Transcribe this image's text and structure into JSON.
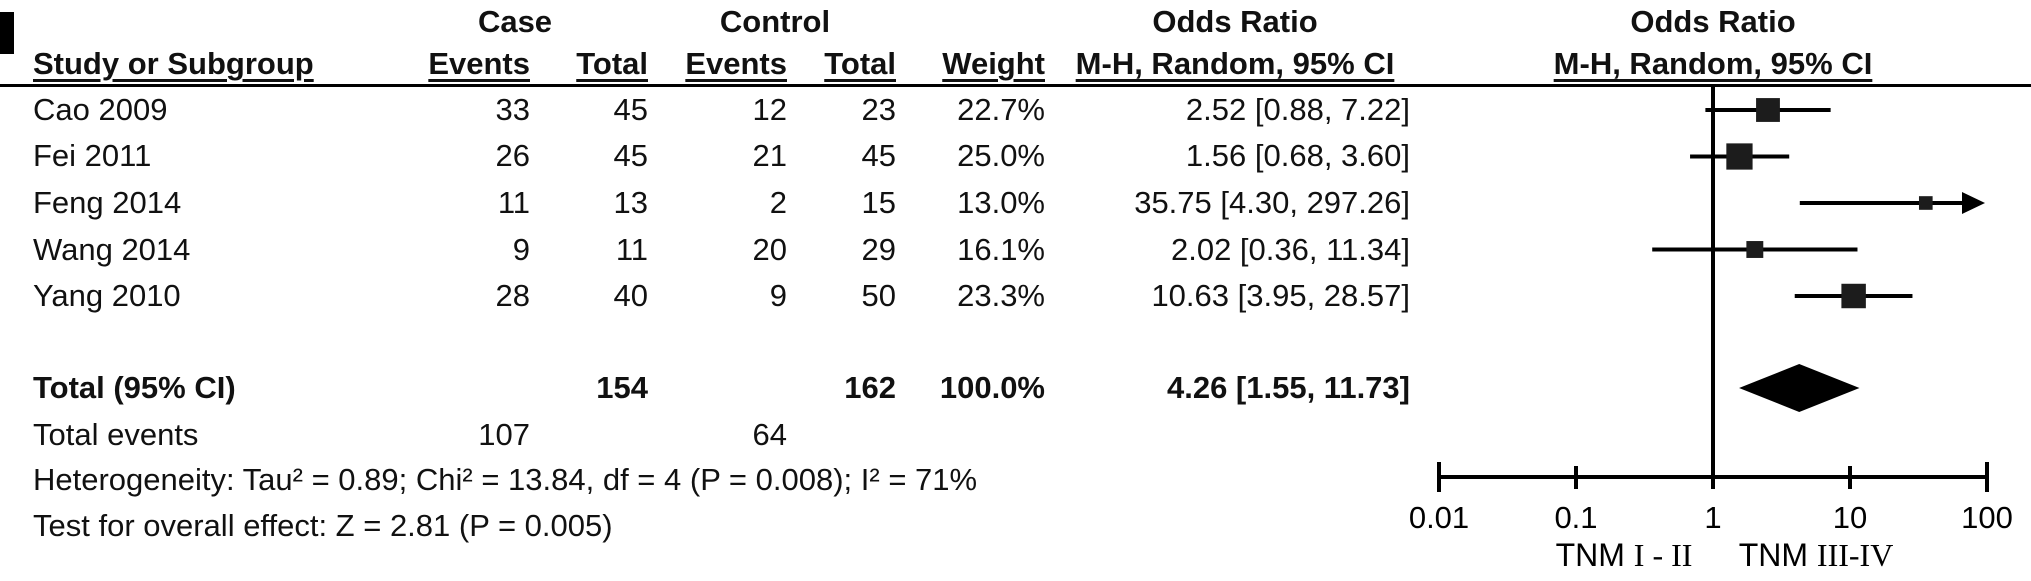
{
  "table": {
    "group_headers": {
      "case": "Case",
      "control": "Control",
      "odds_ratio_left": "Odds Ratio",
      "odds_ratio_right": "Odds Ratio"
    },
    "columns": {
      "study": "Study or Subgroup",
      "events_case": "Events",
      "total_case": "Total",
      "events_control": "Events",
      "total_control": "Total",
      "weight": "Weight",
      "mh_left": "M-H, Random, 95% CI",
      "mh_right": "M-H, Random, 95% CI"
    }
  },
  "rows": [
    {
      "name": "Cao 2009",
      "events_case": "33",
      "total_case": "45",
      "events_control": "12",
      "total_control": "23",
      "weight": "22.7%",
      "or_text": "2.52 [0.88, 7.22]"
    },
    {
      "name": "Fei 2011",
      "events_case": "26",
      "total_case": "45",
      "events_control": "21",
      "total_control": "45",
      "weight": "25.0%",
      "or_text": "1.56 [0.68, 3.60]"
    },
    {
      "name": "Feng 2014",
      "events_case": "11",
      "total_case": "13",
      "events_control": "2",
      "total_control": "15",
      "weight": "13.0%",
      "or_text": "35.75 [4.30, 297.26]"
    },
    {
      "name": "Wang 2014",
      "events_case": "9",
      "total_case": "11",
      "events_control": "20",
      "total_control": "29",
      "weight": "16.1%",
      "or_text": "2.02 [0.36, 11.34]"
    },
    {
      "name": "Yang 2010",
      "events_case": "28",
      "total_case": "40",
      "events_control": "9",
      "total_control": "50",
      "weight": "23.3%",
      "or_text": "10.63 [3.95, 28.57]"
    }
  ],
  "total_row": {
    "label": "Total (95% CI)",
    "total_case": "154",
    "total_control": "162",
    "weight": "100.0%",
    "or_text": "4.26 [1.55, 11.73]"
  },
  "total_events_row": {
    "label": "Total events",
    "events_case": "107",
    "events_control": "64"
  },
  "heterogeneity": "Heterogeneity: Tau² = 0.89; Chi² = 13.84, df = 4 (P = 0.008); I² = 71%",
  "overall_effect": "Test for overall effect: Z = 2.81 (P = 0.005)",
  "chart_data": {
    "type": "forest",
    "effect_measure": "Odds Ratio",
    "method": "M-H, Random, 95% CI",
    "x_scale": "log10",
    "axis": {
      "min": 0.01,
      "max": 100,
      "null_line": 1,
      "ticks": [
        0.01,
        0.1,
        1,
        10,
        100
      ],
      "tick_labels": [
        "0.01",
        "0.1",
        "1",
        "10",
        "100"
      ],
      "label_left": {
        "prefix": "TNM",
        "numerals": "I - II"
      },
      "label_right": {
        "prefix": "TNM",
        "numerals": "III-IV"
      }
    },
    "studies": [
      {
        "name": "Cao 2009",
        "or": 2.52,
        "ci_low": 0.88,
        "ci_high": 7.22,
        "weight": 22.7
      },
      {
        "name": "Fei 2011",
        "or": 1.56,
        "ci_low": 0.68,
        "ci_high": 3.6,
        "weight": 25.0
      },
      {
        "name": "Feng 2014",
        "or": 35.75,
        "ci_low": 4.3,
        "ci_high": 297.26,
        "weight": 13.0
      },
      {
        "name": "Wang 2014",
        "or": 2.02,
        "ci_low": 0.36,
        "ci_high": 11.34,
        "weight": 16.1
      },
      {
        "name": "Yang 2010",
        "or": 10.63,
        "ci_low": 3.95,
        "ci_high": 28.57,
        "weight": 23.3
      }
    ],
    "total": {
      "or": 4.26,
      "ci_low": 1.55,
      "ci_high": 11.73
    }
  },
  "colors": {
    "ink": "#000000",
    "background": "#ffffff"
  }
}
